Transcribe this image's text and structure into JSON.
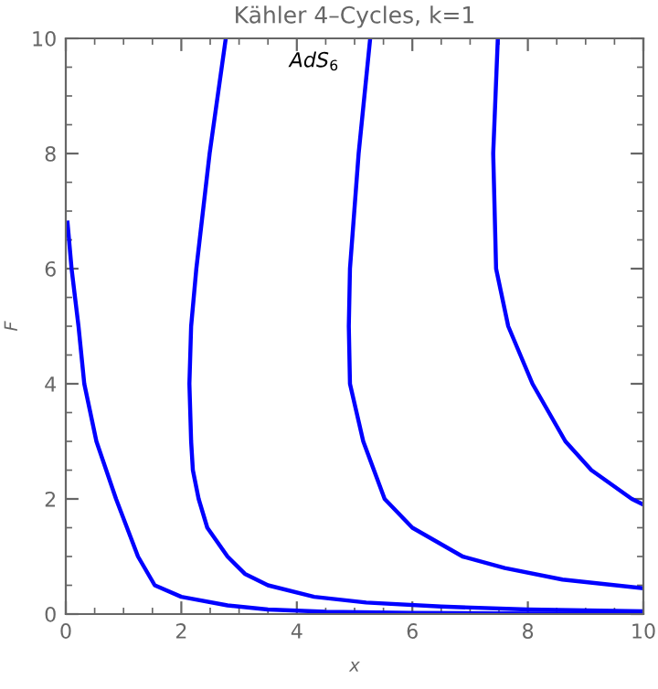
{
  "chart_data": {
    "type": "line",
    "title": "Kähler 4–Cycles, k=1",
    "xlabel": "x",
    "ylabel": "F",
    "annotations": [
      "AdS$_{6}$"
    ],
    "xlim": [
      0,
      10
    ],
    "ylim": [
      0,
      10
    ],
    "xticks": [
      0,
      2,
      4,
      6,
      8,
      10
    ],
    "yticks": [
      0,
      2,
      4,
      6,
      8,
      10
    ],
    "grid": false,
    "legend": false,
    "marker": "none",
    "line_style": "solid",
    "series": [
      {
        "color": "#0000ff",
        "x": [
          0.03,
          0.1,
          0.22,
          0.32,
          0.53,
          0.87,
          1.25,
          1.54,
          2.0,
          2.8,
          3.5,
          4.5,
          6,
          8,
          10
        ],
        "values": [
          6.8,
          6.0,
          5.0,
          4.0,
          3.0,
          2.0,
          1.0,
          0.5,
          0.3,
          0.15,
          0.08,
          0.04,
          0.02,
          0.01,
          0.01
        ]
      },
      {
        "color": "#0000ff",
        "x": [
          2.77,
          2.49,
          2.26,
          2.17,
          2.14,
          2.17,
          2.2,
          2.3,
          2.45,
          2.8,
          3.1,
          3.5,
          4.3,
          5.2,
          6.5,
          8,
          10
        ],
        "values": [
          10,
          8,
          6,
          5,
          4,
          3,
          2.5,
          2,
          1.5,
          1,
          0.7,
          0.5,
          0.3,
          0.2,
          0.13,
          0.08,
          0.05
        ]
      },
      {
        "color": "#0000ff",
        "x": [
          5.27,
          5.07,
          4.92,
          4.9,
          4.92,
          5.15,
          5.52,
          6.0,
          6.87,
          7.6,
          8.6,
          10
        ],
        "values": [
          10,
          8,
          6,
          5,
          4,
          3,
          2,
          1.5,
          1,
          0.8,
          0.6,
          0.45
        ]
      },
      {
        "color": "#0000ff",
        "x": [
          7.48,
          7.4,
          7.45,
          7.66,
          8.08,
          8.65,
          9.1,
          9.8,
          10
        ],
        "values": [
          10,
          8,
          6,
          5,
          4,
          3,
          2.5,
          2,
          1.9
        ]
      }
    ]
  }
}
